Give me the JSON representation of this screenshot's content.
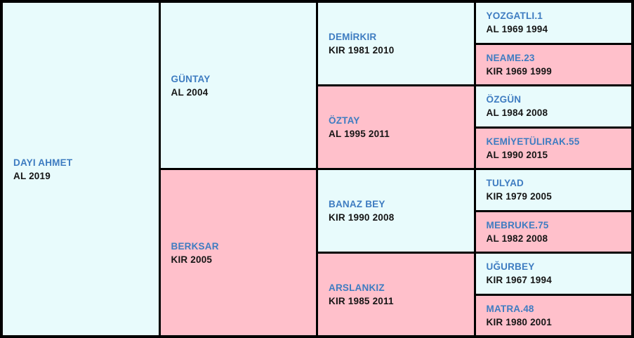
{
  "colors": {
    "sire_bg": "#e8fbfc",
    "dam_bg": "#ffc0cb",
    "name_color": "#3e7cc1",
    "details_color": "#151515",
    "border_color": "#000000"
  },
  "pedigree": {
    "root": {
      "name": "DAYI AHMET",
      "details": "AL 2019",
      "tone": "sire"
    },
    "gen2": [
      {
        "name": "GÜNTAY",
        "details": "AL 2004",
        "tone": "sire"
      },
      {
        "name": "BERKSAR",
        "details": "KIR 2005",
        "tone": "dam"
      }
    ],
    "gen3": [
      {
        "name": "DEMİRKIR",
        "details": "KIR 1981 2010",
        "tone": "sire"
      },
      {
        "name": "ÖZTAY",
        "details": "AL 1995 2011",
        "tone": "dam"
      },
      {
        "name": "BANAZ BEY",
        "details": "KIR 1990 2008",
        "tone": "sire"
      },
      {
        "name": "ARSLANKIZ",
        "details": "KIR 1985 2011",
        "tone": "dam"
      }
    ],
    "gen4": [
      {
        "name": "YOZGATLI.1",
        "details": "AL 1969 1994",
        "tone": "sire"
      },
      {
        "name": "NEAME.23",
        "details": "KIR 1969 1999",
        "tone": "dam"
      },
      {
        "name": "ÖZGÜN",
        "details": "AL 1984 2008",
        "tone": "sire"
      },
      {
        "name": "KEMİYETÜLIRAK.55",
        "details": "AL 1990 2015",
        "tone": "dam"
      },
      {
        "name": "TULYAD",
        "details": "KIR 1979 2005",
        "tone": "sire"
      },
      {
        "name": "MEBRUKE.75",
        "details": "AL 1982 2008",
        "tone": "dam"
      },
      {
        "name": "UĞURBEY",
        "details": "KIR 1967 1994",
        "tone": "sire"
      },
      {
        "name": "MATRA.48",
        "details": "KIR 1980 2001",
        "tone": "dam"
      }
    ]
  }
}
